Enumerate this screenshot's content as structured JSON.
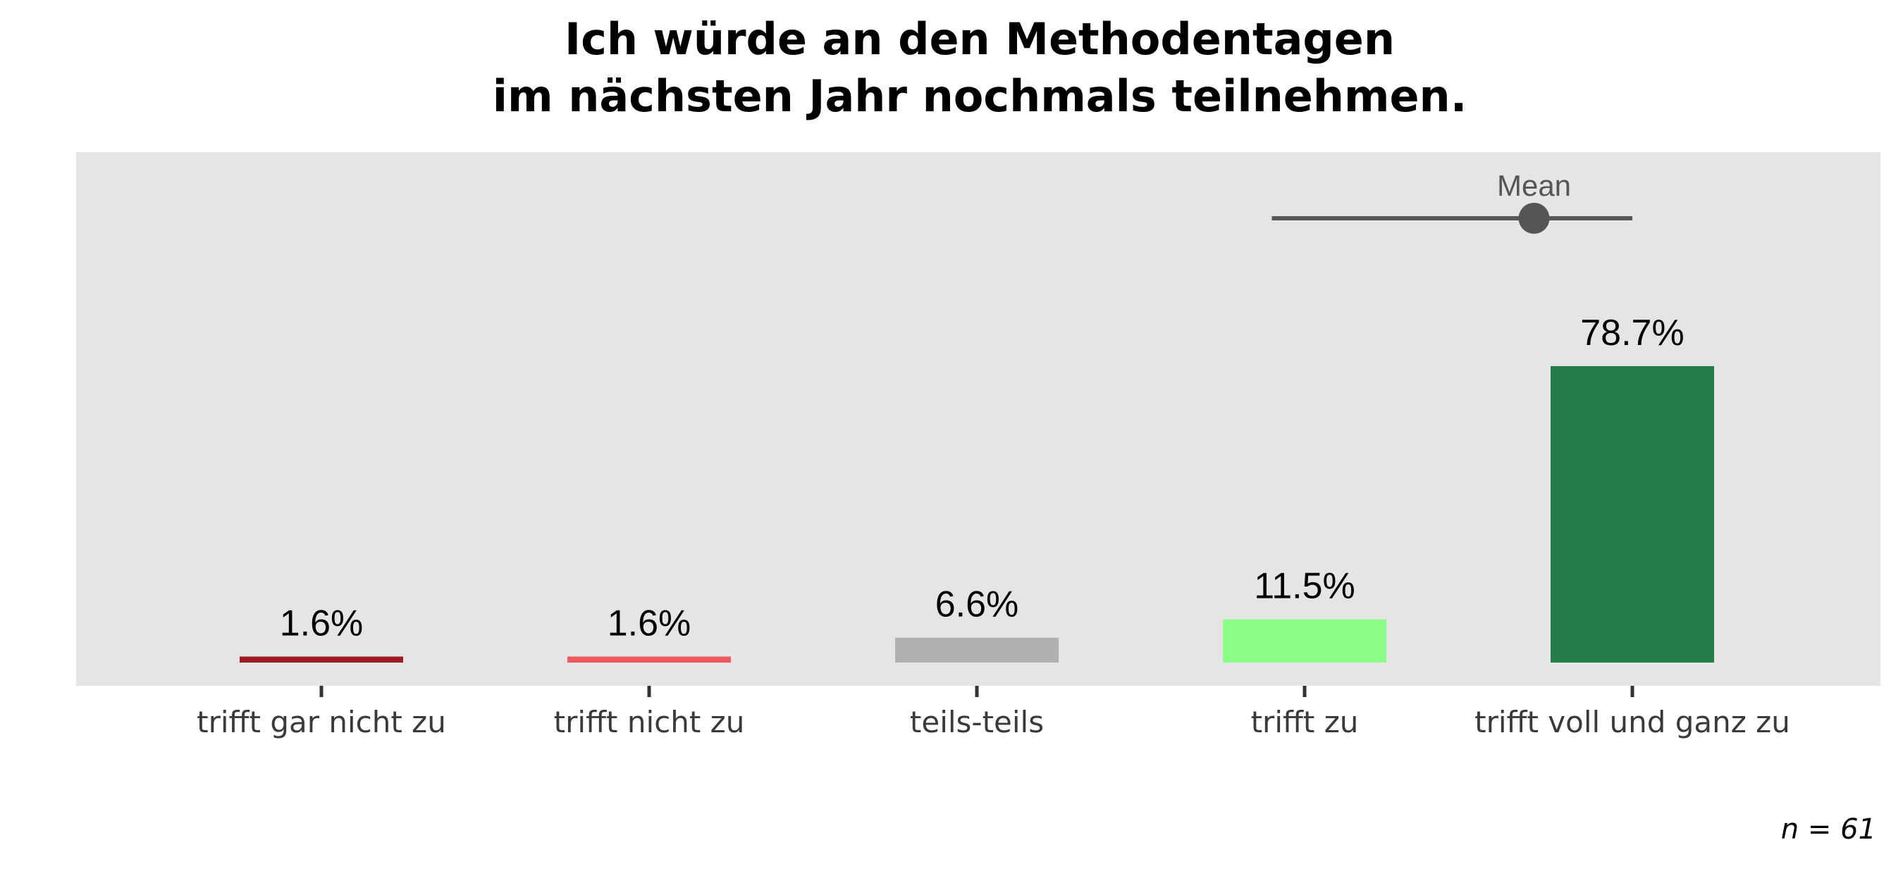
{
  "chart_data": {
    "type": "bar",
    "title_lines": [
      "Ich würde an den Methodentagen",
      "im nächsten Jahr nochmals teilnehmen."
    ],
    "categories": [
      "trifft gar nicht zu",
      "trifft nicht zu",
      "teils-teils",
      "trifft zu",
      "trifft voll und ganz zu"
    ],
    "values": [
      1.6,
      1.6,
      6.6,
      11.5,
      78.7
    ],
    "value_labels": [
      "1.6%",
      "1.6%",
      "6.6%",
      "11.5%",
      "78.7%"
    ],
    "colors": [
      "#9b1c23",
      "#ef5a60",
      "#b0b0b0",
      "#8cff86",
      "#267d49"
    ],
    "ylim": [
      0,
      100
    ],
    "grid": false,
    "mean": {
      "label": "Mean",
      "value": 4.7,
      "range_low": 3.9,
      "range_high": 5.0,
      "color": "#555555"
    },
    "n_label": "n = 61"
  }
}
